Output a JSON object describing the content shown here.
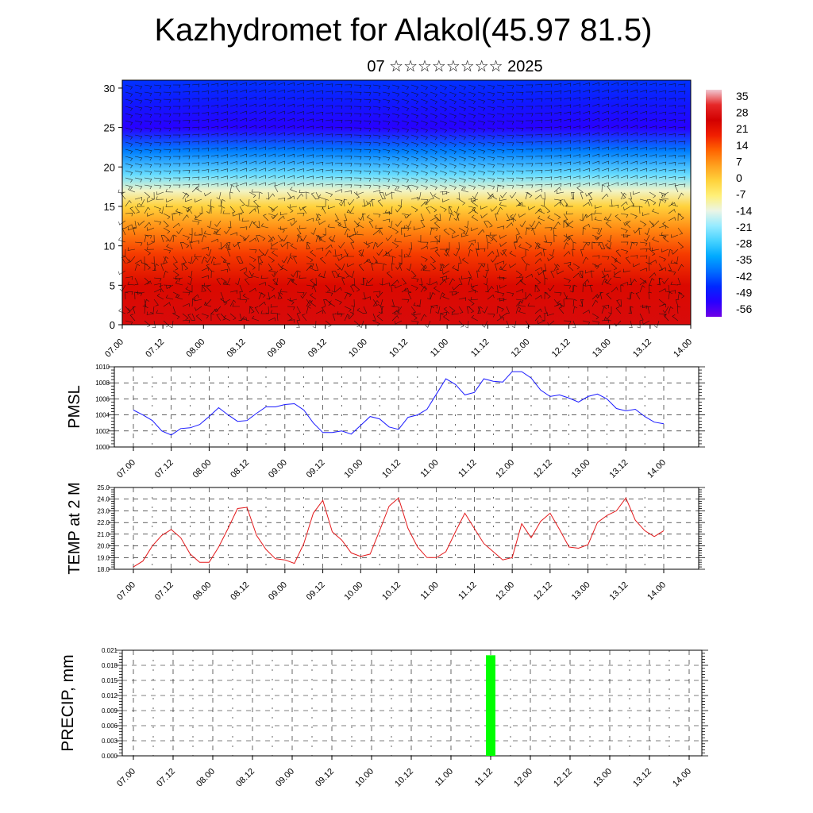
{
  "title": "Kazhydromet for Alakol(45.97 81.5)",
  "subtitle": "07 ☆☆☆☆☆☆☆☆ 2025",
  "colors": {
    "pmsl_line": "#1a1aff",
    "temp_line": "#e31a1c",
    "precip_bar": "#00ff00",
    "wind_barb": "#111111"
  },
  "chart_data": [
    {
      "type": "heatmap",
      "name": "temperature-wind-cross-section",
      "x_tick_labels": [
        "07.00",
        "07.12",
        "08.00",
        "08.12",
        "09.00",
        "09.12",
        "10.00",
        "10.12",
        "11.00",
        "11.12",
        "12.00",
        "12.12",
        "13.00",
        "13.12",
        "14.00"
      ],
      "y_ticks": [
        0,
        5,
        10,
        15,
        20,
        25,
        30
      ],
      "ylim": [
        0,
        31
      ],
      "colorbar": {
        "labels": [
          "35",
          "28",
          "21",
          "14",
          "7",
          "0",
          "-7",
          "-14",
          "-21",
          "-28",
          "-35",
          "-42",
          "-49",
          "-56"
        ],
        "range": [
          -63,
          42
        ]
      },
      "profile_by_level": [
        {
          "level": 0,
          "value": 30
        },
        {
          "level": 5,
          "value": 26
        },
        {
          "level": 9,
          "value": 18
        },
        {
          "level": 12,
          "value": 10
        },
        {
          "level": 15,
          "value": 0
        },
        {
          "level": 17,
          "value": -12
        },
        {
          "level": 19,
          "value": -25
        },
        {
          "level": 22,
          "value": -40
        },
        {
          "level": 25,
          "value": -56
        },
        {
          "level": 28,
          "value": -52
        },
        {
          "level": 31,
          "value": -48
        }
      ],
      "overlay": "wind barbs"
    },
    {
      "type": "line",
      "name": "pmsl",
      "ylabel": "PMSL",
      "ylim": [
        1000,
        1010
      ],
      "y_tick_labels": [
        "1000",
        "1002",
        "1004",
        "1006",
        "1008",
        "1010"
      ],
      "x_tick_labels": [
        "07.00",
        "07.12",
        "08.00",
        "08.12",
        "09.00",
        "09.12",
        "10.00",
        "10.12",
        "11.00",
        "11.12",
        "12.00",
        "12.12",
        "13.00",
        "13.12",
        "14.00"
      ],
      "step_hours": 3,
      "values": [
        1004.6,
        1004.0,
        1003.3,
        1002.0,
        1001.5,
        1002.3,
        1002.4,
        1002.8,
        1003.8,
        1004.9,
        1004.0,
        1003.2,
        1003.3,
        1004.2,
        1005.0,
        1005.0,
        1005.3,
        1005.4,
        1004.6,
        1003.0,
        1001.8,
        1001.8,
        1002.0,
        1001.6,
        1002.7,
        1003.8,
        1003.5,
        1002.5,
        1002.2,
        1003.7,
        1004.0,
        1004.7,
        1006.6,
        1008.5,
        1007.8,
        1006.5,
        1006.8,
        1008.5,
        1008.2,
        1008.1,
        1009.4,
        1009.4,
        1008.6,
        1007.1,
        1006.3,
        1006.5,
        1006.1,
        1005.6,
        1006.3,
        1006.6,
        1006.0,
        1004.8,
        1004.5,
        1004.7,
        1003.8,
        1003.1,
        1002.9
      ]
    },
    {
      "type": "line",
      "name": "temp-2m",
      "ylabel": "TEMP at 2 M",
      "ylim": [
        18,
        25
      ],
      "y_tick_labels": [
        "18.0",
        "19.0",
        "20.0",
        "21.0",
        "22.0",
        "23.0",
        "24.0",
        "25.0"
      ],
      "x_tick_labels": [
        "07.00",
        "07.12",
        "08.00",
        "08.12",
        "09.00",
        "09.12",
        "10.00",
        "10.12",
        "11.00",
        "11.12",
        "12.00",
        "12.12",
        "13.00",
        "13.12",
        "14.00"
      ],
      "step_hours": 3,
      "values": [
        18.2,
        18.7,
        20.0,
        20.9,
        21.4,
        20.7,
        19.3,
        18.6,
        18.6,
        19.9,
        21.5,
        23.2,
        23.3,
        20.9,
        19.7,
        18.9,
        18.8,
        18.5,
        20.2,
        22.8,
        23.9,
        21.2,
        20.5,
        19.4,
        19.1,
        19.3,
        21.3,
        23.4,
        24.1,
        21.5,
        19.9,
        19.0,
        19.0,
        19.5,
        21.2,
        22.8,
        21.5,
        20.2,
        19.5,
        18.8,
        19.0,
        21.9,
        20.7,
        22.1,
        22.8,
        21.4,
        19.9,
        19.8,
        20.1,
        22.0,
        22.6,
        23.0,
        24.1,
        22.2,
        21.3,
        20.8,
        21.3
      ]
    },
    {
      "type": "bar",
      "name": "precip",
      "ylabel": "PRECIP, mm",
      "ylim": [
        0,
        0.021
      ],
      "y_tick_labels": [
        "0.000",
        "0.003",
        "0.006",
        "0.009",
        "0.012",
        "0.015",
        "0.018",
        "0.021"
      ],
      "x_tick_labels": [
        "07.00",
        "07.12",
        "08.00",
        "08.12",
        "09.00",
        "09.12",
        "10.00",
        "10.12",
        "11.00",
        "11.12",
        "12.00",
        "12.12",
        "13.00",
        "13.12",
        "14.00"
      ],
      "bars": [
        {
          "x": "11.12",
          "value": 0.02
        }
      ]
    }
  ]
}
